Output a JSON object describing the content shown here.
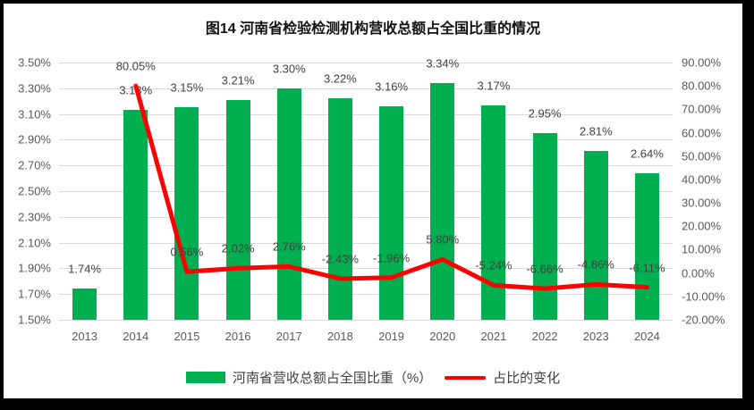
{
  "title": "图14 河南省检验检测机构营收总额占全国比重的情况",
  "colors": {
    "bar": "#00B050",
    "line": "#FF0000",
    "gridline": "#D9D9D9",
    "axis_text": "#595959",
    "label_text": "#404040",
    "frame": "#000000",
    "background": "#FFFFFF"
  },
  "chart_data": {
    "type": "bar",
    "subtype": "combo-bar-line",
    "title": "图14 河南省检验检测机构营收总额占全国比重的情况",
    "categories": [
      "2013",
      "2014",
      "2015",
      "2016",
      "2017",
      "2018",
      "2019",
      "2020",
      "2021",
      "2022",
      "2023",
      "2024"
    ],
    "series": [
      {
        "name": "河南省营收总额占全国比重（%）",
        "type": "bar",
        "axis": "left",
        "values": [
          1.74,
          3.13,
          3.15,
          3.21,
          3.3,
          3.22,
          3.16,
          3.34,
          3.17,
          2.95,
          2.81,
          2.64
        ],
        "labels": [
          "1.74%",
          "3.13%",
          "3.15%",
          "3.21%",
          "3.30%",
          "3.22%",
          "3.16%",
          "3.34%",
          "3.17%",
          "2.95%",
          "2.81%",
          "2.64%"
        ]
      },
      {
        "name": "占比的变化",
        "type": "line",
        "axis": "right",
        "values": [
          null,
          80.05,
          0.56,
          2.02,
          2.76,
          -2.43,
          -1.96,
          5.8,
          -5.24,
          -6.66,
          -4.86,
          -6.11
        ],
        "labels": [
          null,
          "80.05%",
          "0.56%",
          "2.02%",
          "2.76%",
          "-2.43%",
          "-1.96%",
          "5.80%",
          "-5.24%",
          "-6.66%",
          "-4.86%",
          "-6.11%"
        ]
      }
    ],
    "left_axis": {
      "min": 1.5,
      "max": 3.5,
      "ticks": [
        "3.50%",
        "3.30%",
        "3.10%",
        "2.90%",
        "2.70%",
        "2.50%",
        "2.30%",
        "2.10%",
        "1.90%",
        "1.70%",
        "1.50%"
      ]
    },
    "right_axis": {
      "min": -20.0,
      "max": 90.0,
      "ticks": [
        "90.00%",
        "80.00%",
        "70.00%",
        "60.00%",
        "50.00%",
        "40.00%",
        "30.00%",
        "20.00%",
        "10.00%",
        "0.00%",
        "-10.00%",
        "-20.00%"
      ]
    },
    "grid": true,
    "legend_position": "bottom"
  },
  "legend": {
    "bar_label": "河南省营收总额占全国比重（%）",
    "line_label": "占比的变化"
  }
}
